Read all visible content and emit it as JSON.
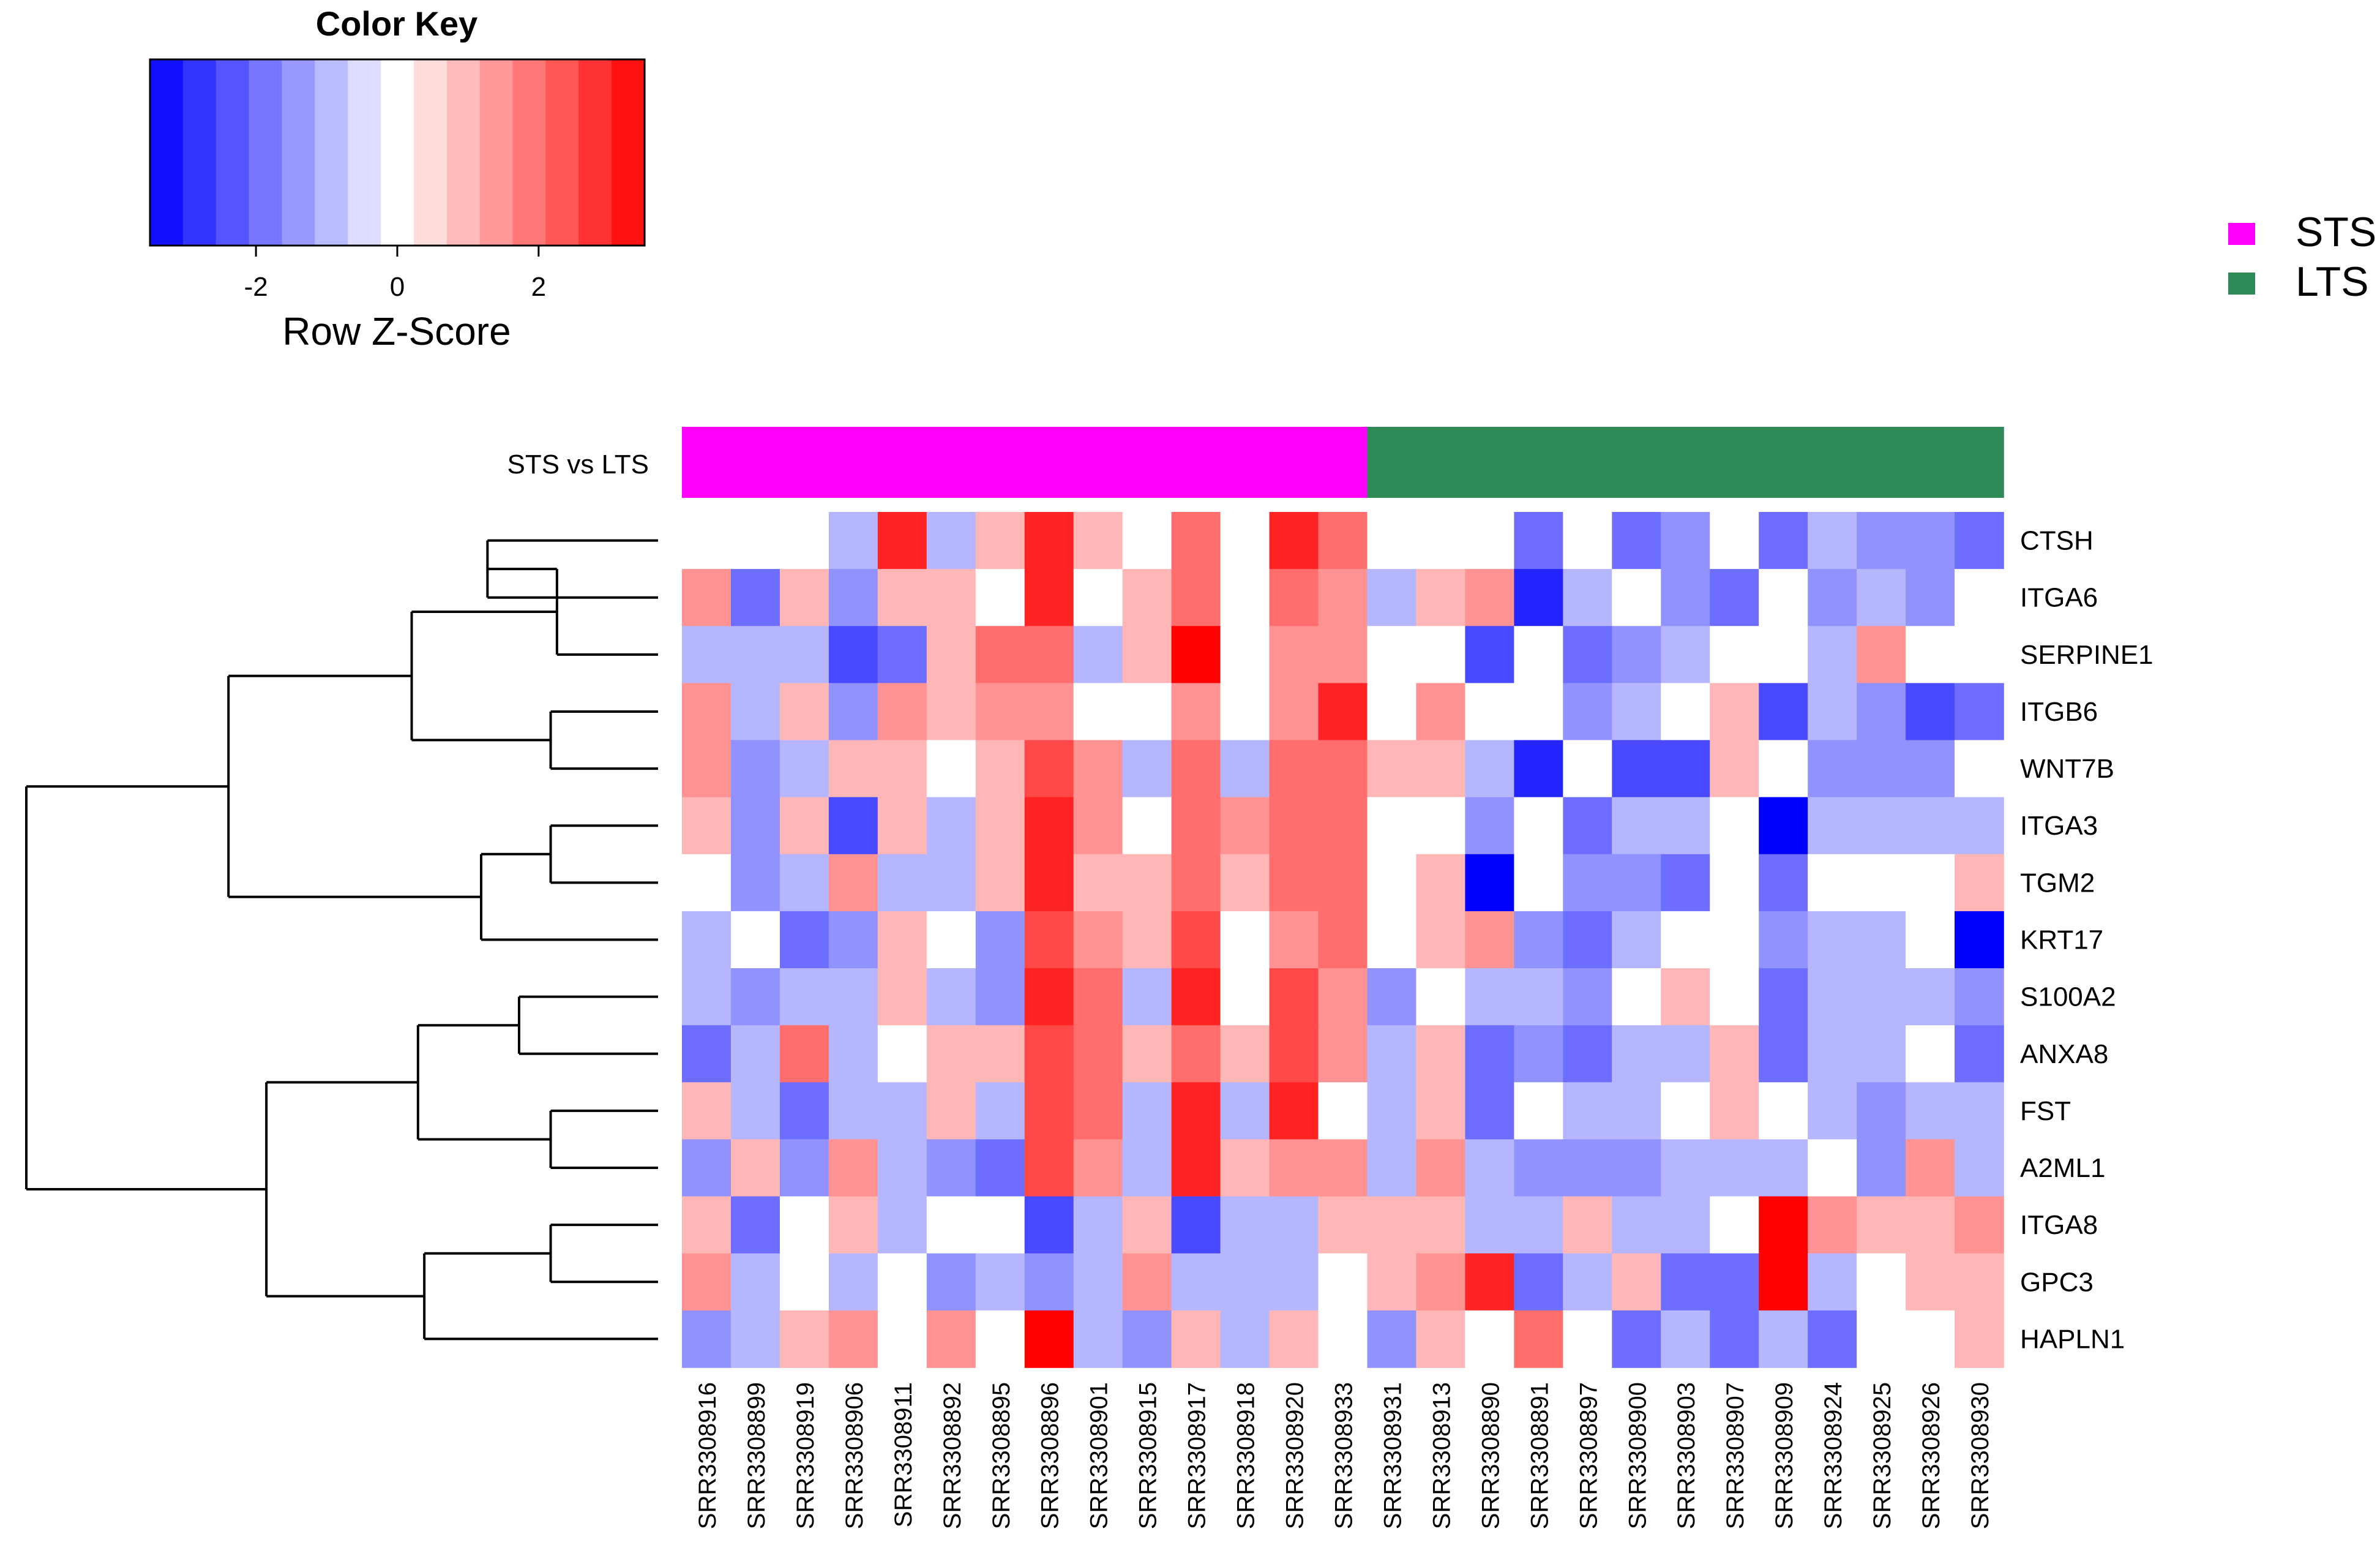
{
  "chart_data": {
    "type": "heatmap",
    "title": "",
    "color_key": {
      "title": "Color Key",
      "xlabel": "Row Z-Score",
      "range": [
        -3.5,
        3.5
      ],
      "ticks": [
        -2,
        0,
        2
      ],
      "tick_labels": [
        "-2",
        "0",
        "2"
      ],
      "low_color": "#0000ff",
      "mid_color": "#ffffff",
      "high_color": "#ff0000",
      "breaks": 15
    },
    "annotation": {
      "label": "STS vs LTS",
      "groups": [
        {
          "name": "STS",
          "color": "#ff00ff",
          "count": 14
        },
        {
          "name": "LTS",
          "color": "#2e8b57",
          "count": 13
        }
      ]
    },
    "legend": {
      "position": "top-right",
      "entries": [
        "STS",
        "LTS"
      ]
    },
    "rows": [
      "CTSH",
      "ITGA6",
      "SERPINE1",
      "ITGB6",
      "WNT7B",
      "ITGA3",
      "TGM2",
      "KRT17",
      "S100A2",
      "ANXA8",
      "FST",
      "A2ML1",
      "ITGA8",
      "GPC3",
      "HAPLN1"
    ],
    "columns": [
      "SRR3308916",
      "SRR3308899",
      "SRR3308919",
      "SRR3308906",
      "SRR3308911",
      "SRR3308892",
      "SRR3308895",
      "SRR3308896",
      "SRR3308901",
      "SRR3308915",
      "SRR3308917",
      "SRR3308918",
      "SRR3308920",
      "SRR3308933",
      "SRR3308931",
      "SRR3308913",
      "SRR3308890",
      "SRR3308891",
      "SRR3308897",
      "SRR3308900",
      "SRR3308903",
      "SRR3308907",
      "SRR3308909",
      "SRR3308924",
      "SRR3308925",
      "SRR3308926",
      "SRR3308930"
    ],
    "values": [
      [
        0,
        0,
        0,
        -1,
        3,
        -1,
        1,
        3,
        1,
        0,
        2,
        0,
        3,
        2,
        0,
        0,
        0,
        -2,
        0,
        -2,
        -1.5,
        0,
        -2,
        -1,
        -1.5,
        -1.5,
        -2
      ],
      [
        1.5,
        -2,
        1,
        -1.5,
        1,
        1,
        0,
        3,
        0,
        1,
        2,
        0,
        2,
        1.5,
        -1,
        1,
        1.5,
        -3,
        -1,
        0,
        -1.5,
        -2,
        0,
        -1.5,
        -1,
        -1.5,
        0
      ],
      [
        -1,
        -1,
        -1,
        -2.5,
        -2,
        1,
        2,
        2,
        -1,
        1,
        3.5,
        0,
        1.5,
        1.5,
        0,
        0,
        -2.5,
        0,
        -2,
        -1.5,
        -1,
        0,
        0,
        -1,
        1.5,
        0,
        0
      ],
      [
        1.5,
        -1,
        1,
        -1.5,
        1.5,
        1,
        1.5,
        1.5,
        0,
        0,
        1.5,
        0,
        1.5,
        3,
        0,
        1.5,
        0,
        0,
        -1.5,
        -1,
        0,
        1,
        -2.5,
        -1,
        -1.5,
        -2.5,
        -2
      ],
      [
        1.5,
        -1.5,
        -1,
        1,
        1,
        0,
        1,
        2.5,
        1.5,
        -1,
        2,
        -1,
        2,
        2,
        1,
        1,
        -1,
        -3,
        0,
        -2.5,
        -2.5,
        1,
        0,
        -1.5,
        -1.5,
        -1.5,
        0
      ],
      [
        1,
        -1.5,
        1,
        -2.5,
        1,
        -1,
        1,
        3,
        1.5,
        0,
        2,
        1.5,
        2,
        2,
        0,
        0,
        -1.5,
        0,
        -2,
        -1,
        -1,
        0,
        -3.5,
        -1,
        -1,
        -1,
        -1
      ],
      [
        0,
        -1.5,
        -1,
        1.5,
        -1,
        -1,
        1,
        3,
        1,
        1,
        2,
        1,
        2,
        2,
        0,
        1,
        -3.5,
        0,
        -1.5,
        -1.5,
        -2,
        0,
        -2,
        0,
        0,
        0,
        1
      ],
      [
        -1,
        0,
        -2,
        -1.5,
        1,
        0,
        -1.5,
        2.5,
        1.5,
        1,
        2.5,
        0,
        1.5,
        2,
        0,
        1,
        1.5,
        -1.5,
        -2,
        -1,
        0,
        0,
        -1.5,
        -1,
        -1,
        0,
        -3.5
      ],
      [
        -1,
        -1.5,
        -1,
        -1,
        1,
        -1,
        -1.5,
        3,
        2,
        -1,
        3,
        0,
        2.5,
        1.5,
        -1.5,
        0,
        -1,
        -1,
        -1.5,
        0,
        1,
        0,
        -2,
        -1,
        -1,
        -1,
        -1.5
      ],
      [
        -2,
        -1,
        2,
        -1,
        0,
        1,
        1,
        2.5,
        2,
        1,
        2,
        1,
        2.5,
        1.5,
        -1,
        1,
        -2,
        -1.5,
        -2,
        -1,
        -1,
        1,
        -2,
        -1,
        -1,
        0,
        -2
      ],
      [
        1,
        -1,
        -2,
        -1,
        -1,
        1,
        -1,
        2.5,
        2,
        -1,
        3,
        -1,
        3,
        0,
        -1,
        1,
        -2,
        0,
        -1,
        -1,
        0,
        1,
        0,
        -1,
        -1.5,
        -1,
        -1
      ],
      [
        -1.5,
        1,
        -1.5,
        1.5,
        -1,
        -1.5,
        -2,
        2.5,
        1.5,
        -1,
        3,
        1,
        1.5,
        1.5,
        -1,
        1.5,
        -1,
        -1.5,
        -1.5,
        -1.5,
        -1,
        -1,
        -1,
        0,
        -1.5,
        1.5,
        -1
      ],
      [
        1,
        -2,
        0,
        1,
        -1,
        0,
        0,
        -2.5,
        -1,
        1,
        -2.5,
        -1,
        -1,
        1,
        1,
        1,
        -1,
        -1,
        1,
        -1,
        -1,
        0,
        3.5,
        1.5,
        1,
        1,
        1.5
      ],
      [
        1.5,
        -1,
        0,
        -1,
        0,
        -1.5,
        -1,
        -1.5,
        -1,
        1.5,
        -1,
        -1,
        -1,
        0,
        1,
        1.5,
        3,
        -2,
        -1,
        1,
        -2,
        -2,
        3.5,
        -1,
        0,
        1,
        1
      ],
      [
        -1.5,
        -1,
        1,
        1.5,
        0,
        1.5,
        0,
        3.5,
        -1,
        -1.5,
        1,
        -1,
        1,
        0,
        -1.5,
        1,
        0,
        2,
        0,
        -2,
        -1,
        -2,
        -1,
        -2,
        0,
        0,
        1
      ]
    ]
  }
}
